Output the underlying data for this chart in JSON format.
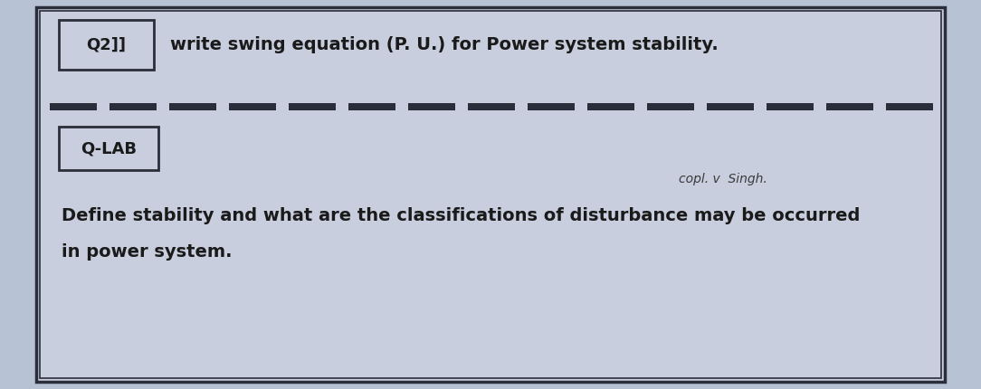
{
  "bg_color": "#b8c2d5",
  "paper_color": "#c8cedd",
  "border_color": "#2a2d3a",
  "text_color": "#1a1a1a",
  "q2_label": "Q2]]",
  "q2_text": "write swing equation (P. U.) for Power system stability.",
  "qlab_label": "Q-LAB",
  "handwritten_text": "copl. v  Singh.",
  "main_text_line1": "Define stability and what are the classifications of disturbance may be occurred",
  "main_text_line2": "in power system.",
  "figsize": [
    10.84,
    4.3
  ]
}
